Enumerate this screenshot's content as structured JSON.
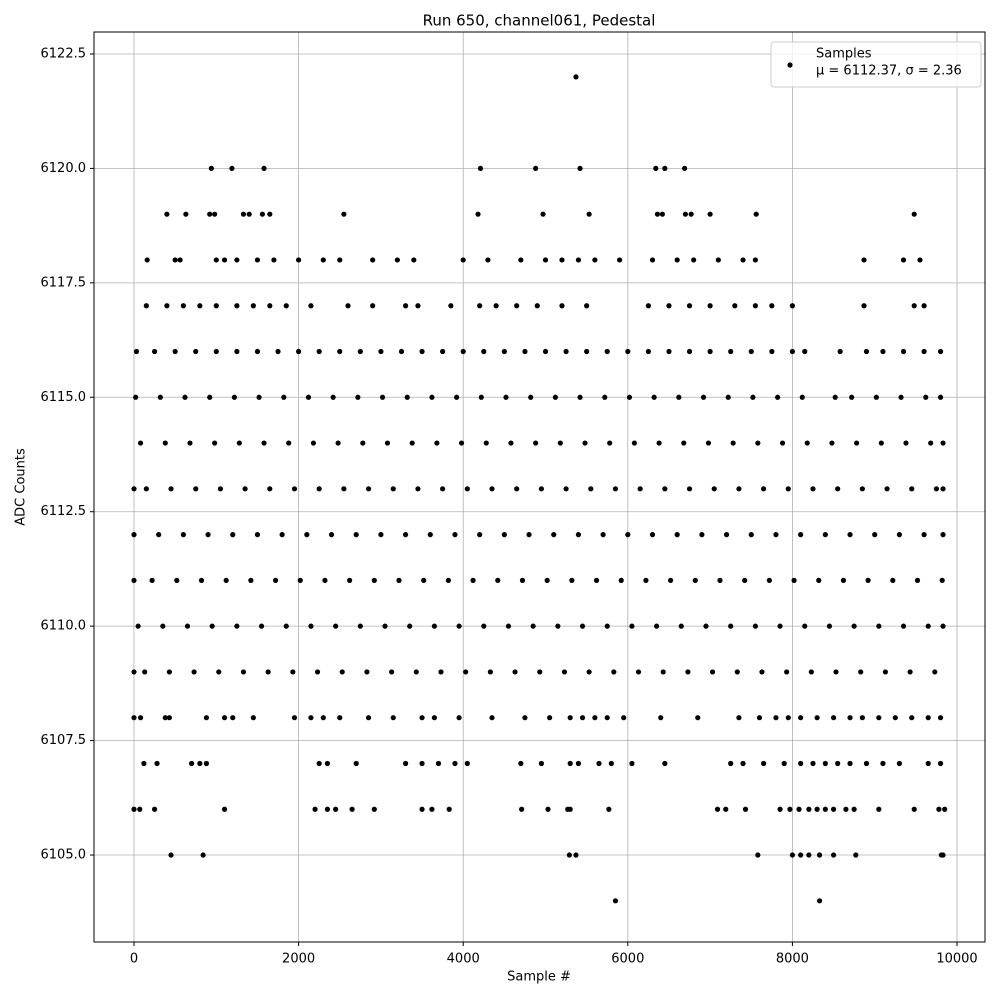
{
  "chart_data": {
    "type": "scatter",
    "title": "Run 650, channel061, Pedestal",
    "x_label": "Sample #",
    "y_label": "ADC Counts",
    "legend": "upper right",
    "legend_note": "μ = 6112.37, σ = 2.36",
    "grid": true,
    "xlim": [
      -486,
      10340
    ],
    "ylim": [
      6103.1,
      6122.98
    ],
    "xticks": [
      0,
      2000,
      4000,
      6000,
      8000,
      10000
    ],
    "yticks": [
      {
        "value": 6105,
        "label": "6105.0"
      },
      {
        "value": 6107.5,
        "label": "6107.5"
      },
      {
        "value": 6110,
        "label": "6110.0"
      },
      {
        "value": 6112.5,
        "label": "6112.5"
      },
      {
        "value": 6115,
        "label": "6115.0"
      },
      {
        "value": 6117.5,
        "label": "6117.5"
      },
      {
        "value": 6120,
        "label": "6120.0"
      },
      {
        "value": 6122.5,
        "label": "6122.5"
      }
    ],
    "x": [
      5370,
      940,
      1190,
      1580,
      4210,
      4880,
      5420,
      6340,
      6450,
      6690,
      400,
      630,
      920,
      980,
      1330,
      1400,
      1560,
      1650,
      2550,
      4180,
      4970,
      5530,
      6360,
      6420,
      6700,
      6770,
      7000,
      7560,
      9480,
      160,
      500,
      560,
      1000,
      1100,
      1250,
      1500,
      1700,
      2000,
      2300,
      2500,
      2900,
      3200,
      3400,
      4000,
      4300,
      4700,
      5000,
      5200,
      5400,
      5600,
      5900,
      6300,
      6600,
      6800,
      7100,
      7400,
      7550,
      8870,
      9350,
      9550,
      150,
      400,
      600,
      800,
      1000,
      1250,
      1450,
      1650,
      1850,
      2150,
      2600,
      2900,
      3300,
      3450,
      3850,
      4200,
      4400,
      4650,
      4900,
      5200,
      5500,
      6250,
      6500,
      6750,
      7000,
      7300,
      7550,
      7750,
      8000,
      8870,
      9480,
      9600,
      30,
      250,
      500,
      750,
      1000,
      1250,
      1500,
      1750,
      2000,
      2250,
      2500,
      2750,
      3000,
      3250,
      3500,
      3750,
      4000,
      4250,
      4500,
      4750,
      5000,
      5250,
      5500,
      5750,
      6000,
      6250,
      6500,
      6750,
      7000,
      7250,
      7500,
      7750,
      8000,
      8150,
      8580,
      8900,
      9100,
      9350,
      9600,
      9800,
      20,
      320,
      620,
      920,
      1220,
      1520,
      1820,
      2120,
      2420,
      2720,
      3020,
      3320,
      3620,
      3920,
      4220,
      4520,
      4820,
      5120,
      5420,
      5720,
      6020,
      6320,
      6620,
      6920,
      7220,
      7520,
      7820,
      8120,
      8520,
      8720,
      9020,
      9320,
      9620,
      9800,
      80,
      380,
      680,
      980,
      1280,
      1580,
      1880,
      2180,
      2480,
      2780,
      3080,
      3380,
      3680,
      3980,
      4280,
      4580,
      4880,
      5180,
      5480,
      5780,
      6080,
      6380,
      6680,
      6980,
      7280,
      7580,
      7880,
      8180,
      8480,
      8780,
      9080,
      9380,
      9680,
      9830,
      0,
      150,
      450,
      750,
      1050,
      1350,
      1650,
      1950,
      2250,
      2550,
      2850,
      3150,
      3450,
      3750,
      4050,
      4350,
      4650,
      4950,
      5250,
      5550,
      5850,
      6150,
      6450,
      6750,
      7050,
      7350,
      7650,
      7950,
      8250,
      8550,
      8850,
      9150,
      9450,
      9750,
      9830,
      0,
      300,
      600,
      900,
      1200,
      1500,
      1800,
      2100,
      2400,
      2700,
      3000,
      3300,
      3600,
      3900,
      4200,
      4500,
      4800,
      5100,
      5400,
      5700,
      6000,
      6300,
      6600,
      6900,
      7200,
      7500,
      7800,
      8100,
      8400,
      8700,
      9000,
      9300,
      9600,
      9830,
      0,
      220,
      520,
      820,
      1120,
      1420,
      1720,
      2020,
      2320,
      2620,
      2920,
      3220,
      3520,
      3820,
      4120,
      4420,
      4720,
      5020,
      5320,
      5620,
      5920,
      6220,
      6520,
      6820,
      7120,
      7420,
      7720,
      8020,
      8320,
      8620,
      8920,
      9220,
      9520,
      9820,
      50,
      350,
      650,
      950,
      1250,
      1550,
      1850,
      2150,
      2450,
      2750,
      3050,
      3350,
      3650,
      3950,
      4250,
      4550,
      4850,
      5150,
      5450,
      5750,
      6050,
      6350,
      6650,
      6950,
      7250,
      7550,
      7850,
      8150,
      8450,
      8750,
      9050,
      9350,
      9650,
      9830,
      0,
      130,
      430,
      730,
      1030,
      1330,
      1630,
      1930,
      2230,
      2530,
      2830,
      3130,
      3430,
      3730,
      4030,
      4330,
      4630,
      4930,
      5230,
      5530,
      5830,
      6130,
      6430,
      6730,
      7030,
      7330,
      7630,
      7930,
      8230,
      8530,
      8830,
      9130,
      9430,
      9730,
      0,
      80,
      380,
      430,
      880,
      1100,
      1200,
      1450,
      1950,
      2150,
      2300,
      2500,
      2850,
      3150,
      3500,
      3650,
      3950,
      4350,
      4750,
      5050,
      5300,
      5450,
      5600,
      5750,
      5950,
      6400,
      6850,
      7350,
      7600,
      7800,
      7950,
      8100,
      8300,
      8500,
      8700,
      8850,
      9050,
      9250,
      9450,
      9650,
      9800,
      120,
      280,
      700,
      800,
      880,
      2250,
      2350,
      2700,
      3300,
      3500,
      3700,
      3900,
      4050,
      4700,
      4950,
      5300,
      5400,
      5650,
      5800,
      6050,
      6450,
      7250,
      7400,
      7650,
      7900,
      8100,
      8250,
      8400,
      8550,
      8700,
      8900,
      9100,
      9300,
      9650,
      9800,
      0,
      70,
      250,
      1100,
      2200,
      2350,
      2450,
      2650,
      2920,
      3500,
      3620,
      3830,
      4710,
      5030,
      5270,
      5300,
      5770,
      7090,
      7190,
      7430,
      7850,
      7970,
      8080,
      8200,
      8300,
      8400,
      8500,
      8650,
      8750,
      9050,
      9480,
      9780,
      9850,
      450,
      840,
      5290,
      5370,
      7580,
      8000,
      8100,
      8200,
      8330,
      8500,
      8770,
      9810,
      9830,
      5850,
      8330
    ],
    "series": [
      {
        "name": "Samples",
        "color": "#000000",
        "values": [
          6122,
          6120,
          6120,
          6120,
          6120,
          6120,
          6120,
          6120,
          6120,
          6120,
          6119,
          6119,
          6119,
          6119,
          6119,
          6119,
          6119,
          6119,
          6119,
          6119,
          6119,
          6119,
          6119,
          6119,
          6119,
          6119,
          6119,
          6119,
          6119,
          6118,
          6118,
          6118,
          6118,
          6118,
          6118,
          6118,
          6118,
          6118,
          6118,
          6118,
          6118,
          6118,
          6118,
          6118,
          6118,
          6118,
          6118,
          6118,
          6118,
          6118,
          6118,
          6118,
          6118,
          6118,
          6118,
          6118,
          6118,
          6118,
          6118,
          6118,
          6117,
          6117,
          6117,
          6117,
          6117,
          6117,
          6117,
          6117,
          6117,
          6117,
          6117,
          6117,
          6117,
          6117,
          6117,
          6117,
          6117,
          6117,
          6117,
          6117,
          6117,
          6117,
          6117,
          6117,
          6117,
          6117,
          6117,
          6117,
          6117,
          6117,
          6117,
          6117,
          6116,
          6116,
          6116,
          6116,
          6116,
          6116,
          6116,
          6116,
          6116,
          6116,
          6116,
          6116,
          6116,
          6116,
          6116,
          6116,
          6116,
          6116,
          6116,
          6116,
          6116,
          6116,
          6116,
          6116,
          6116,
          6116,
          6116,
          6116,
          6116,
          6116,
          6116,
          6116,
          6116,
          6116,
          6116,
          6116,
          6116,
          6116,
          6116,
          6116,
          6115,
          6115,
          6115,
          6115,
          6115,
          6115,
          6115,
          6115,
          6115,
          6115,
          6115,
          6115,
          6115,
          6115,
          6115,
          6115,
          6115,
          6115,
          6115,
          6115,
          6115,
          6115,
          6115,
          6115,
          6115,
          6115,
          6115,
          6115,
          6115,
          6115,
          6115,
          6115,
          6115,
          6115,
          6114,
          6114,
          6114,
          6114,
          6114,
          6114,
          6114,
          6114,
          6114,
          6114,
          6114,
          6114,
          6114,
          6114,
          6114,
          6114,
          6114,
          6114,
          6114,
          6114,
          6114,
          6114,
          6114,
          6114,
          6114,
          6114,
          6114,
          6114,
          6114,
          6114,
          6114,
          6114,
          6114,
          6114,
          6113,
          6113,
          6113,
          6113,
          6113,
          6113,
          6113,
          6113,
          6113,
          6113,
          6113,
          6113,
          6113,
          6113,
          6113,
          6113,
          6113,
          6113,
          6113,
          6113,
          6113,
          6113,
          6113,
          6113,
          6113,
          6113,
          6113,
          6113,
          6113,
          6113,
          6113,
          6113,
          6113,
          6113,
          6113,
          6112,
          6112,
          6112,
          6112,
          6112,
          6112,
          6112,
          6112,
          6112,
          6112,
          6112,
          6112,
          6112,
          6112,
          6112,
          6112,
          6112,
          6112,
          6112,
          6112,
          6112,
          6112,
          6112,
          6112,
          6112,
          6112,
          6112,
          6112,
          6112,
          6112,
          6112,
          6112,
          6112,
          6112,
          6111,
          6111,
          6111,
          6111,
          6111,
          6111,
          6111,
          6111,
          6111,
          6111,
          6111,
          6111,
          6111,
          6111,
          6111,
          6111,
          6111,
          6111,
          6111,
          6111,
          6111,
          6111,
          6111,
          6111,
          6111,
          6111,
          6111,
          6111,
          6111,
          6111,
          6111,
          6111,
          6111,
          6111,
          6110,
          6110,
          6110,
          6110,
          6110,
          6110,
          6110,
          6110,
          6110,
          6110,
          6110,
          6110,
          6110,
          6110,
          6110,
          6110,
          6110,
          6110,
          6110,
          6110,
          6110,
          6110,
          6110,
          6110,
          6110,
          6110,
          6110,
          6110,
          6110,
          6110,
          6110,
          6110,
          6110,
          6110,
          6109,
          6109,
          6109,
          6109,
          6109,
          6109,
          6109,
          6109,
          6109,
          6109,
          6109,
          6109,
          6109,
          6109,
          6109,
          6109,
          6109,
          6109,
          6109,
          6109,
          6109,
          6109,
          6109,
          6109,
          6109,
          6109,
          6109,
          6109,
          6109,
          6109,
          6109,
          6109,
          6109,
          6109,
          6108,
          6108,
          6108,
          6108,
          6108,
          6108,
          6108,
          6108,
          6108,
          6108,
          6108,
          6108,
          6108,
          6108,
          6108,
          6108,
          6108,
          6108,
          6108,
          6108,
          6108,
          6108,
          6108,
          6108,
          6108,
          6108,
          6108,
          6108,
          6108,
          6108,
          6108,
          6108,
          6108,
          6108,
          6108,
          6108,
          6108,
          6108,
          6108,
          6108,
          6108,
          6107,
          6107,
          6107,
          6107,
          6107,
          6107,
          6107,
          6107,
          6107,
          6107,
          6107,
          6107,
          6107,
          6107,
          6107,
          6107,
          6107,
          6107,
          6107,
          6107,
          6107,
          6107,
          6107,
          6107,
          6107,
          6107,
          6107,
          6107,
          6107,
          6107,
          6107,
          6107,
          6107,
          6107,
          6107,
          6106,
          6106,
          6106,
          6106,
          6106,
          6106,
          6106,
          6106,
          6106,
          6106,
          6106,
          6106,
          6106,
          6106,
          6106,
          6106,
          6106,
          6106,
          6106,
          6106,
          6106,
          6106,
          6106,
          6106,
          6106,
          6106,
          6106,
          6106,
          6106,
          6106,
          6106,
          6106,
          6106,
          6105,
          6105,
          6105,
          6105,
          6105,
          6105,
          6105,
          6105,
          6105,
          6105,
          6105,
          6105,
          6105,
          6104,
          6104
        ]
      }
    ]
  }
}
